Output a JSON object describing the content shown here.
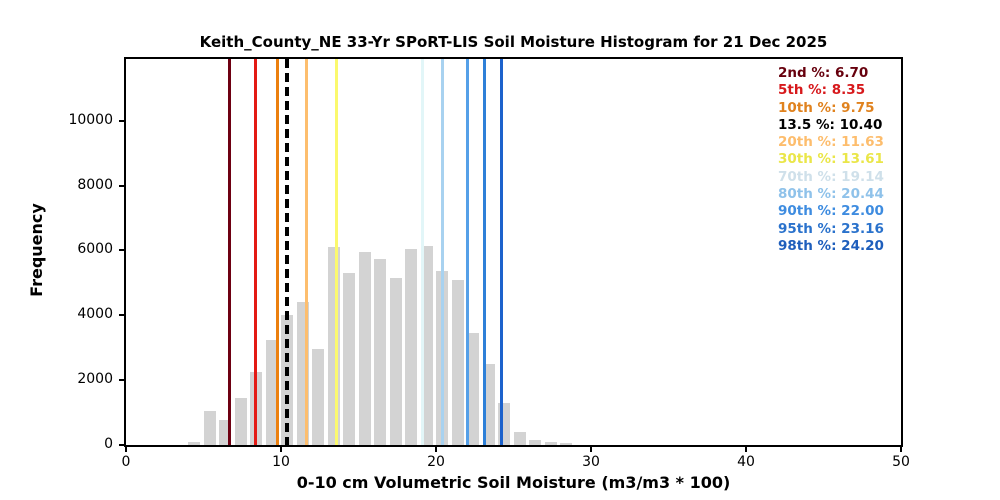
{
  "chart_data": {
    "type": "bar",
    "title": "Keith_County_NE 33-Yr SPoRT-LIS Soil Moisture Histogram for 21 Dec 2025",
    "xlabel": "0-10 cm Volumetric Soil Moisture (m3/m3 * 100)",
    "ylabel": "Frequency",
    "xlim": [
      0,
      50
    ],
    "ylim": [
      0,
      11900
    ],
    "xticks": [
      0,
      10,
      20,
      30,
      40,
      50
    ],
    "yticks": [
      0,
      2000,
      4000,
      6000,
      8000,
      10000
    ],
    "grid": false,
    "legend_position": "upper right",
    "bar_color": "#d3d3d3",
    "bar_width": 0.78,
    "x": [
      4.4,
      5.4,
      6.4,
      7.4,
      8.4,
      9.4,
      10.4,
      11.4,
      12.4,
      13.4,
      14.4,
      15.4,
      16.4,
      17.4,
      18.4,
      19.4,
      20.4,
      21.4,
      22.4,
      23.4,
      24.4,
      25.4,
      26.4,
      27.4,
      28.4
    ],
    "values": [
      80,
      1050,
      760,
      1450,
      2250,
      3250,
      4000,
      4400,
      2950,
      6100,
      5300,
      5950,
      5750,
      5150,
      6050,
      6150,
      5350,
      5100,
      3450,
      2500,
      1300,
      400,
      150,
      80,
      60
    ],
    "percentiles": [
      {
        "name": "2nd",
        "label": "2nd %",
        "value": 6.7,
        "display": "2nd %: 6.70",
        "style": "solid",
        "line_color": "#6e0012",
        "text_color": "#67000d"
      },
      {
        "name": "5th",
        "label": "5th %",
        "value": 8.35,
        "display": "5th %: 8.35",
        "style": "solid",
        "line_color": "#e31a14",
        "text_color": "#d7191c"
      },
      {
        "name": "10th",
        "label": "10th %",
        "value": 9.75,
        "display": "10th %: 9.75",
        "style": "solid",
        "line_color": "#ec800f",
        "text_color": "#e0821e"
      },
      {
        "name": "13.5",
        "label": "13.5 %",
        "value": 10.4,
        "display": "13.5 %: 10.40",
        "style": "dashed",
        "line_color": "#000000",
        "text_color": "#000000"
      },
      {
        "name": "20th",
        "label": "20th %",
        "value": 11.63,
        "display": "20th %: 11.63",
        "style": "solid",
        "line_color": "#fdbe6e",
        "text_color": "#fdbd6d"
      },
      {
        "name": "30th",
        "label": "30th %",
        "value": 13.61,
        "display": "30th %: 13.61",
        "style": "solid",
        "line_color": "#fbf96e",
        "text_color": "#eae649"
      },
      {
        "name": "70th",
        "label": "70th %",
        "value": 19.14,
        "display": "70th %: 19.14",
        "style": "solid",
        "line_color": "#e2f6f8",
        "text_color": "#cfe0ea"
      },
      {
        "name": "80th",
        "label": "80th %",
        "value": 20.44,
        "display": "80th %: 20.44",
        "style": "solid",
        "line_color": "#a8d2f0",
        "text_color": "#8fc2ea"
      },
      {
        "name": "90th",
        "label": "90th %",
        "value": 22.0,
        "display": "90th %: 22.00",
        "style": "solid",
        "line_color": "#55a0e8",
        "text_color": "#3e8ce0"
      },
      {
        "name": "95th",
        "label": "95th %",
        "value": 23.16,
        "display": "95th %: 23.16",
        "style": "solid",
        "line_color": "#2e80d8",
        "text_color": "#2a72cc"
      },
      {
        "name": "98th",
        "label": "98th %",
        "value": 24.2,
        "display": "98th %: 24.20",
        "style": "solid",
        "line_color": "#1c62cc",
        "text_color": "#1e5ebc"
      }
    ]
  }
}
